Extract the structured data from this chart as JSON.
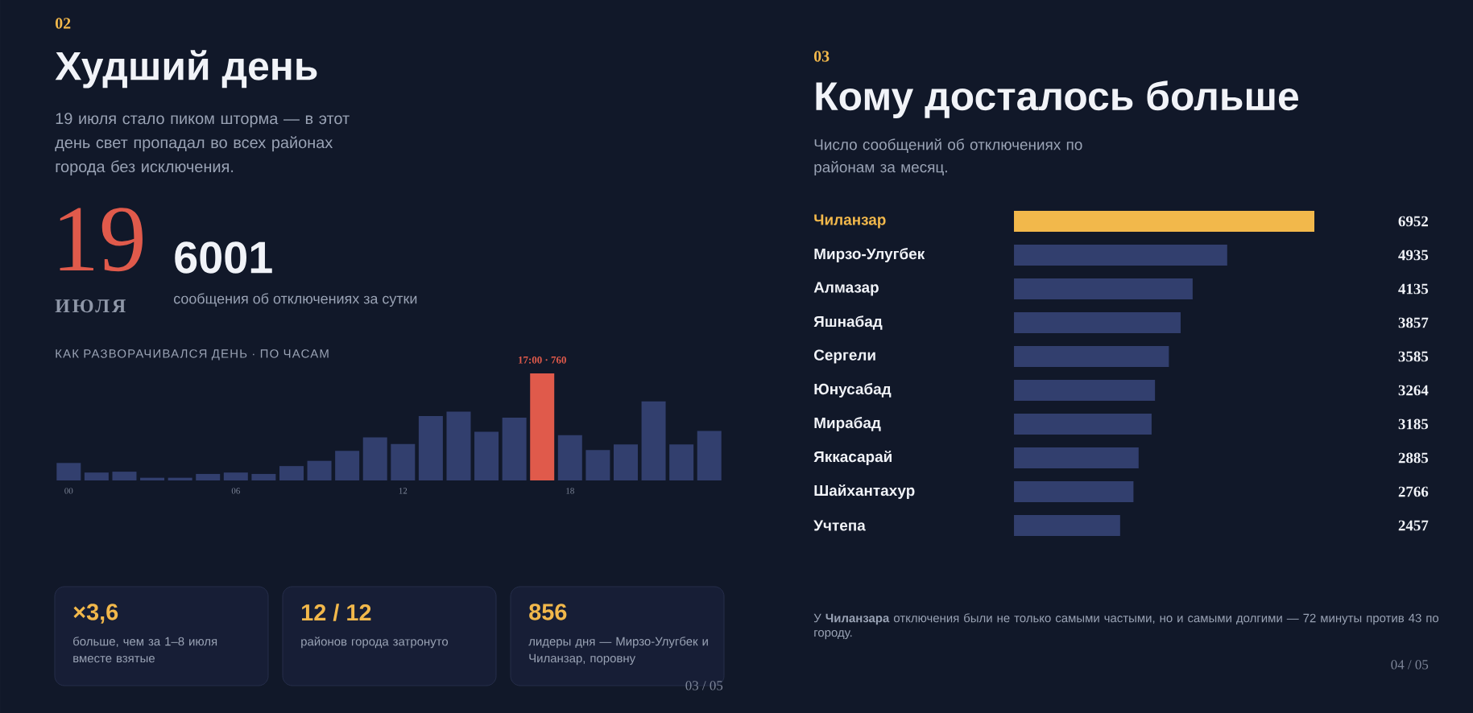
{
  "chart_data": [
    {
      "type": "bar",
      "title": "Худший день",
      "subtitle": "19 июля стало пиком шторма — в этот день свет пропадал во всех районах города без исключения.",
      "categories": [
        "00",
        null,
        null,
        null,
        null,
        null,
        "06",
        null,
        null,
        null,
        null,
        null,
        "12",
        null,
        null,
        null,
        null,
        null,
        "18",
        null,
        null,
        null,
        null,
        null
      ],
      "values": [
        124,
        56,
        62,
        19,
        19,
        46,
        56,
        46,
        102,
        139,
        210,
        306,
        259,
        457,
        488,
        346,
        445,
        760,
        321,
        216,
        256,
        562,
        256,
        352
      ],
      "colors": [
        "#323f6e",
        "#323f6e",
        "#323f6e",
        "#323f6e",
        "#323f6e",
        "#323f6e",
        "#323f6e",
        "#323f6e",
        "#323f6e",
        "#323f6e",
        "#323f6e",
        "#323f6e",
        "#323f6e",
        "#323f6e",
        "#323f6e",
        "#323f6e",
        "#323f6e",
        "#e05a4b",
        "#323f6e",
        "#323f6e",
        "#323f6e",
        "#323f6e",
        "#323f6e",
        "#323f6e"
      ],
      "value_labels": [
        null,
        null,
        null,
        null,
        null,
        null,
        null,
        null,
        null,
        null,
        null,
        null,
        null,
        null,
        null,
        null,
        null,
        "17:00 · 760",
        null,
        null,
        null,
        null,
        null,
        null
      ],
      "tick_labels": "x",
      "annotations": [
        "02",
        "19",
        "ИЮЛЯ",
        "6001",
        "сообщения об отключениях за сутки",
        "КАК РАЗВОРАЧИВАЛСЯ ДЕНЬ · ПО ЧАСАМ",
        "×3,6",
        "больше, чем за 1–8 июля вместе взятые",
        "12 / 12",
        "районов города затронуто",
        "856",
        "лидеры дня — Мирзо-Улугбек и Чиланзар, поровну",
        "03 / 05"
      ]
    },
    {
      "type": "bar",
      "orientation": "horizontal",
      "title": "Кому досталось больше",
      "subtitle": "Число сообщений об отключениях по районам за месяц.",
      "categories": [
        "Чиланзар",
        "Мирзо-Улугбек",
        "Алмазар",
        "Яшнабад",
        "Сергели",
        "Юнусабад",
        "Мирабад",
        "Яккасарай",
        "Шайхантахур",
        "Учтепа"
      ],
      "values": [
        6952,
        4935,
        4135,
        3857,
        3585,
        3264,
        3185,
        2885,
        2766,
        2457
      ],
      "colors": [
        "#f2b84b",
        "#323f6e",
        "#323f6e",
        "#323f6e",
        "#323f6e",
        "#323f6e",
        "#323f6e",
        "#323f6e",
        "#323f6e",
        "#323f6e"
      ],
      "data_labels": true,
      "tick_labels": "y",
      "annotations": [
        "03",
        "У **Чиланзара** отключения были не только самыми частыми, но и самыми долгими — 72 минуты против 43 по городу.",
        "04 / 05"
      ]
    }
  ]
}
